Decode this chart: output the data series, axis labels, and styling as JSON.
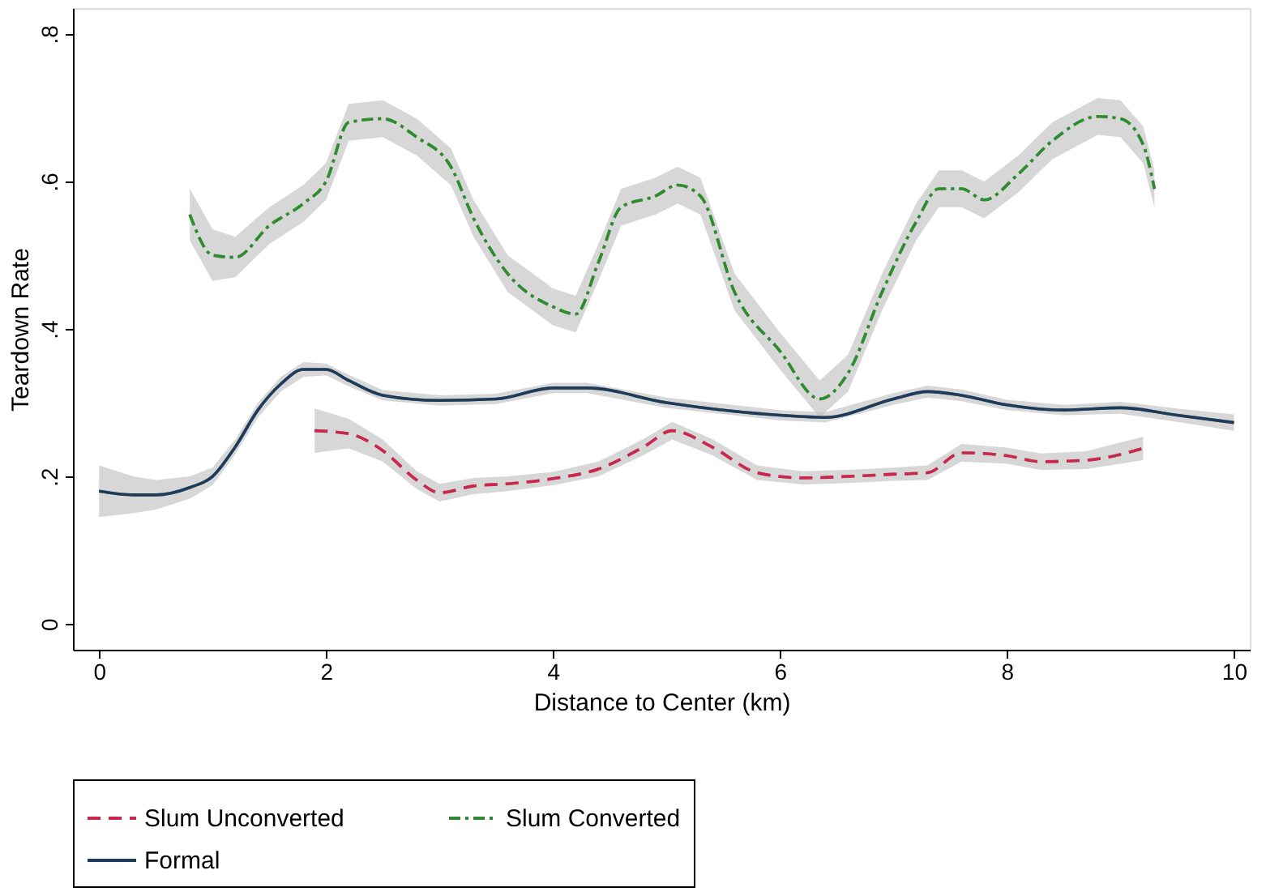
{
  "chart_data": {
    "type": "line",
    "xlabel": "Distance to Center (km)",
    "ylabel": "Teardown Rate",
    "xlim": [
      -0.23,
      10.14
    ],
    "xticks": [
      0,
      2,
      4,
      6,
      8,
      10
    ],
    "ylim": [
      -0.035,
      0.835
    ],
    "yticks": [
      {
        "value": 0,
        "label": "0"
      },
      {
        "value": 0.2,
        "label": ".2"
      },
      {
        "value": 0.4,
        "label": ".4"
      },
      {
        "value": 0.6,
        "label": ".6"
      },
      {
        "value": 0.8,
        "label": ".8"
      }
    ],
    "grid": false,
    "legend": "bottom",
    "marker": "none",
    "series": [
      {
        "name": "Slum Unconverted",
        "color": "#c8284b",
        "line_style": "dashed",
        "x": [
          1.9,
          2.2,
          2.5,
          2.8,
          3.0,
          3.3,
          3.6,
          4.0,
          4.4,
          4.8,
          5.05,
          5.4,
          5.8,
          6.2,
          6.6,
          7.0,
          7.3,
          7.6,
          8.0,
          8.3,
          8.7,
          9.2
        ],
        "values": [
          0.262,
          0.258,
          0.235,
          0.195,
          0.178,
          0.187,
          0.19,
          0.197,
          0.21,
          0.24,
          0.262,
          0.24,
          0.205,
          0.198,
          0.2,
          0.203,
          0.205,
          0.232,
          0.228,
          0.22,
          0.222,
          0.238
        ],
        "lower": [
          0.232,
          0.238,
          0.22,
          0.183,
          0.166,
          0.176,
          0.18,
          0.188,
          0.2,
          0.229,
          0.25,
          0.229,
          0.195,
          0.189,
          0.191,
          0.194,
          0.195,
          0.22,
          0.217,
          0.209,
          0.21,
          0.222
        ],
        "upper": [
          0.292,
          0.278,
          0.25,
          0.207,
          0.19,
          0.198,
          0.2,
          0.206,
          0.22,
          0.251,
          0.274,
          0.251,
          0.215,
          0.207,
          0.209,
          0.212,
          0.215,
          0.244,
          0.239,
          0.231,
          0.234,
          0.254
        ]
      },
      {
        "name": "Slum Converted",
        "color": "#2e8b2e",
        "line_style": "dashdot",
        "x": [
          0.8,
          1.0,
          1.2,
          1.5,
          1.8,
          2.0,
          2.2,
          2.5,
          2.8,
          3.1,
          3.3,
          3.6,
          4.0,
          4.2,
          4.4,
          4.6,
          4.9,
          5.1,
          5.3,
          5.6,
          6.0,
          6.35,
          6.6,
          6.9,
          7.2,
          7.4,
          7.6,
          7.8,
          8.1,
          8.4,
          8.8,
          9.0,
          9.2,
          9.3
        ],
        "values": [
          0.555,
          0.5,
          0.497,
          0.54,
          0.57,
          0.6,
          0.68,
          0.685,
          0.66,
          0.62,
          0.55,
          0.475,
          0.43,
          0.42,
          0.49,
          0.565,
          0.58,
          0.595,
          0.58,
          0.45,
          0.37,
          0.305,
          0.34,
          0.45,
          0.545,
          0.59,
          0.59,
          0.575,
          0.61,
          0.655,
          0.688,
          0.685,
          0.65,
          0.59
        ],
        "lower": [
          0.52,
          0.465,
          0.47,
          0.515,
          0.545,
          0.575,
          0.655,
          0.66,
          0.635,
          0.595,
          0.525,
          0.45,
          0.405,
          0.395,
          0.465,
          0.54,
          0.555,
          0.57,
          0.555,
          0.425,
          0.345,
          0.28,
          0.315,
          0.425,
          0.52,
          0.565,
          0.565,
          0.55,
          0.585,
          0.63,
          0.663,
          0.66,
          0.625,
          0.565
        ],
        "upper": [
          0.59,
          0.535,
          0.525,
          0.565,
          0.595,
          0.625,
          0.705,
          0.71,
          0.685,
          0.645,
          0.575,
          0.5,
          0.455,
          0.445,
          0.515,
          0.59,
          0.605,
          0.62,
          0.605,
          0.475,
          0.395,
          0.33,
          0.365,
          0.475,
          0.57,
          0.615,
          0.615,
          0.6,
          0.635,
          0.68,
          0.713,
          0.71,
          0.675,
          0.615
        ]
      },
      {
        "name": "Formal",
        "color": "#1f3b5a",
        "line_style": "solid",
        "x": [
          0,
          0.3,
          0.5,
          0.8,
          1.0,
          1.2,
          1.4,
          1.6,
          1.8,
          2.0,
          2.2,
          2.5,
          3.0,
          3.5,
          4.0,
          4.3,
          5.0,
          6.0,
          6.4,
          7.0,
          7.3,
          7.6,
          8.0,
          8.5,
          9.0,
          9.5,
          10.0
        ],
        "values": [
          0.18,
          0.175,
          0.175,
          0.185,
          0.2,
          0.24,
          0.29,
          0.325,
          0.345,
          0.345,
          0.33,
          0.31,
          0.303,
          0.305,
          0.32,
          0.32,
          0.3,
          0.283,
          0.28,
          0.305,
          0.315,
          0.31,
          0.297,
          0.29,
          0.293,
          0.283,
          0.273
        ],
        "lower": [
          0.145,
          0.15,
          0.155,
          0.17,
          0.188,
          0.23,
          0.28,
          0.315,
          0.335,
          0.337,
          0.322,
          0.303,
          0.296,
          0.298,
          0.313,
          0.313,
          0.293,
          0.276,
          0.273,
          0.297,
          0.307,
          0.302,
          0.29,
          0.283,
          0.285,
          0.274,
          0.262
        ],
        "upper": [
          0.215,
          0.2,
          0.195,
          0.2,
          0.212,
          0.25,
          0.3,
          0.335,
          0.355,
          0.353,
          0.338,
          0.317,
          0.31,
          0.312,
          0.327,
          0.327,
          0.307,
          0.29,
          0.287,
          0.313,
          0.323,
          0.318,
          0.304,
          0.297,
          0.301,
          0.292,
          0.284
        ]
      }
    ]
  }
}
